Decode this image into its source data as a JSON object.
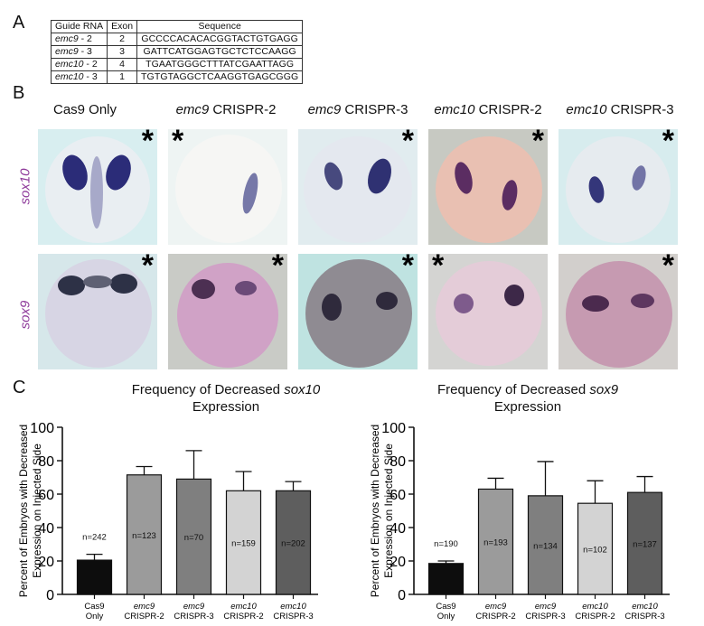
{
  "panels": {
    "a": "A",
    "b": "B",
    "c": "C"
  },
  "guide_table": {
    "headers": [
      "Guide RNA",
      "Exon",
      "Sequence"
    ],
    "rows": [
      {
        "gene": "emc9",
        "suffix": " - 2",
        "exon": "2",
        "sequence": "GCCCCACACACGGTACTGTGAGG"
      },
      {
        "gene": "emc9",
        "suffix": " - 3",
        "exon": "3",
        "sequence": "GATTCATGGAGTGCTCTCCAAGG"
      },
      {
        "gene": "emc10",
        "suffix": " - 2",
        "exon": "4",
        "sequence": "TGAATGGGCTTTATCGAATTAGG"
      },
      {
        "gene": "emc10",
        "suffix": " - 3",
        "exon": "1",
        "sequence": "TGTGTAGGCTCAAGGTGAGCGGG"
      }
    ]
  },
  "panel_b": {
    "columns": [
      {
        "gene": "",
        "label": "Cas9 Only"
      },
      {
        "gene": "emc9",
        "label": " CRISPR-2"
      },
      {
        "gene": "emc9",
        "label": " CRISPR-3"
      },
      {
        "gene": "emc10",
        "label": " CRISPR-2"
      },
      {
        "gene": "emc10",
        "label": " CRISPR-3"
      }
    ],
    "rows": [
      "sox10",
      "sox9"
    ],
    "asterisk": "*"
  },
  "chart_data": [
    {
      "type": "bar",
      "title_prefix": "Frequency of Decreased ",
      "title_gene": "sox10",
      "title_suffix": "Expression",
      "ylabel_line1": "Percent of Embryos with Decreased",
      "ylabel_line2": "Expression on Injected Side",
      "ylim": [
        0,
        100
      ],
      "yticks": [
        0,
        20,
        40,
        60,
        80,
        100
      ],
      "categories": [
        {
          "gene": "",
          "line1": "Cas9",
          "line2": "Only"
        },
        {
          "gene": "emc9",
          "line1": "emc9",
          "line2": "CRISPR-2"
        },
        {
          "gene": "emc9",
          "line1": "emc9",
          "line2": "CRISPR-3"
        },
        {
          "gene": "emc10",
          "line1": "emc10",
          "line2": "CRISPR-2"
        },
        {
          "gene": "emc10",
          "line1": "emc10",
          "line2": "CRISPR-3"
        }
      ],
      "values": [
        20.5,
        71.5,
        69,
        62,
        62
      ],
      "errors": [
        3.5,
        5,
        17,
        11.5,
        5.5
      ],
      "n_labels": [
        "n=242",
        "n=123",
        "n=70",
        "n=159",
        "n=202"
      ],
      "colors": [
        "#0d0d0d",
        "#9b9b9b",
        "#7f7f7f",
        "#d3d3d3",
        "#5e5e5e"
      ]
    },
    {
      "type": "bar",
      "title_prefix": "Frequency of Decreased ",
      "title_gene": "sox9",
      "title_suffix": "Expression",
      "ylabel_line1": "Percent of Embryos with Decreased",
      "ylabel_line2": "Expression on Injected Side",
      "ylim": [
        0,
        100
      ],
      "yticks": [
        0,
        20,
        40,
        60,
        80,
        100
      ],
      "categories": [
        {
          "gene": "",
          "line1": "Cas9",
          "line2": "Only"
        },
        {
          "gene": "emc9",
          "line1": "emc9",
          "line2": "CRISPR-2"
        },
        {
          "gene": "emc9",
          "line1": "emc9",
          "line2": "CRISPR-3"
        },
        {
          "gene": "emc10",
          "line1": "emc10",
          "line2": "CRISPR-2"
        },
        {
          "gene": "emc10",
          "line1": "emc10",
          "line2": "CRISPR-3"
        }
      ],
      "values": [
        18.5,
        63,
        59,
        54.5,
        61
      ],
      "errors": [
        1.5,
        6.5,
        20.5,
        13.5,
        9.5
      ],
      "n_labels": [
        "n=190",
        "n=193",
        "n=134",
        "n=102",
        "n=137"
      ],
      "colors": [
        "#0d0d0d",
        "#9b9b9b",
        "#7f7f7f",
        "#d3d3d3",
        "#5e5e5e"
      ]
    }
  ]
}
